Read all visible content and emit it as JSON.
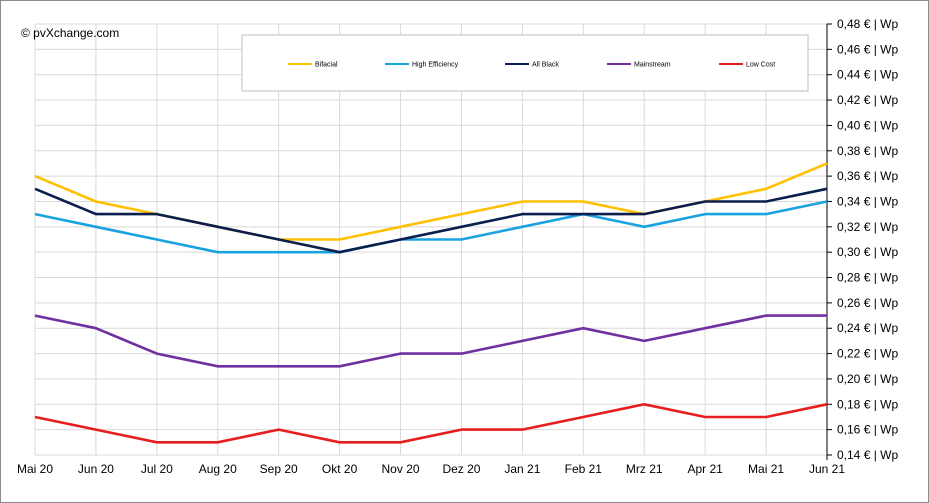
{
  "watermark": "© pvXchange.com",
  "chart_data": {
    "type": "line",
    "title": "",
    "xlabel": "",
    "ylabel": "",
    "ylim": [
      0.14,
      0.48
    ],
    "y_step": 0.02,
    "y_tick_suffix": " € | Wp",
    "grid": true,
    "legend_position": "top",
    "categories": [
      "Mai 20",
      "Jun 20",
      "Jul 20",
      "Aug 20",
      "Sep 20",
      "Okt 20",
      "Nov 20",
      "Dez 20",
      "Jan 21",
      "Feb 21",
      "Mrz 21",
      "Apr 21",
      "Mai 21",
      "Jun 21"
    ],
    "series": [
      {
        "name": "Bifacial",
        "color": "#FFC000",
        "values": [
          0.36,
          0.34,
          0.33,
          0.32,
          0.31,
          0.31,
          0.32,
          0.33,
          0.34,
          0.34,
          0.33,
          0.34,
          0.35,
          0.37
        ]
      },
      {
        "name": "High Efficiency",
        "color": "#1AA3E0",
        "values": [
          0.33,
          0.32,
          0.31,
          0.3,
          0.3,
          0.3,
          0.31,
          0.31,
          0.32,
          0.33,
          0.32,
          0.33,
          0.33,
          0.34
        ]
      },
      {
        "name": "All Black",
        "color": "#0B1F4F",
        "values": [
          0.35,
          0.33,
          0.33,
          0.32,
          0.31,
          0.3,
          0.31,
          0.32,
          0.33,
          0.33,
          0.33,
          0.34,
          0.34,
          0.35
        ]
      },
      {
        "name": "Mainstream",
        "color": "#7030A0",
        "values": [
          0.25,
          0.24,
          0.22,
          0.21,
          0.21,
          0.21,
          0.22,
          0.22,
          0.23,
          0.24,
          0.23,
          0.24,
          0.25,
          0.25
        ]
      },
      {
        "name": "Low Cost",
        "color": "#E61E1E",
        "values": [
          0.17,
          0.16,
          0.15,
          0.15,
          0.16,
          0.15,
          0.15,
          0.16,
          0.16,
          0.17,
          0.18,
          0.17,
          0.17,
          0.18
        ]
      }
    ]
  }
}
